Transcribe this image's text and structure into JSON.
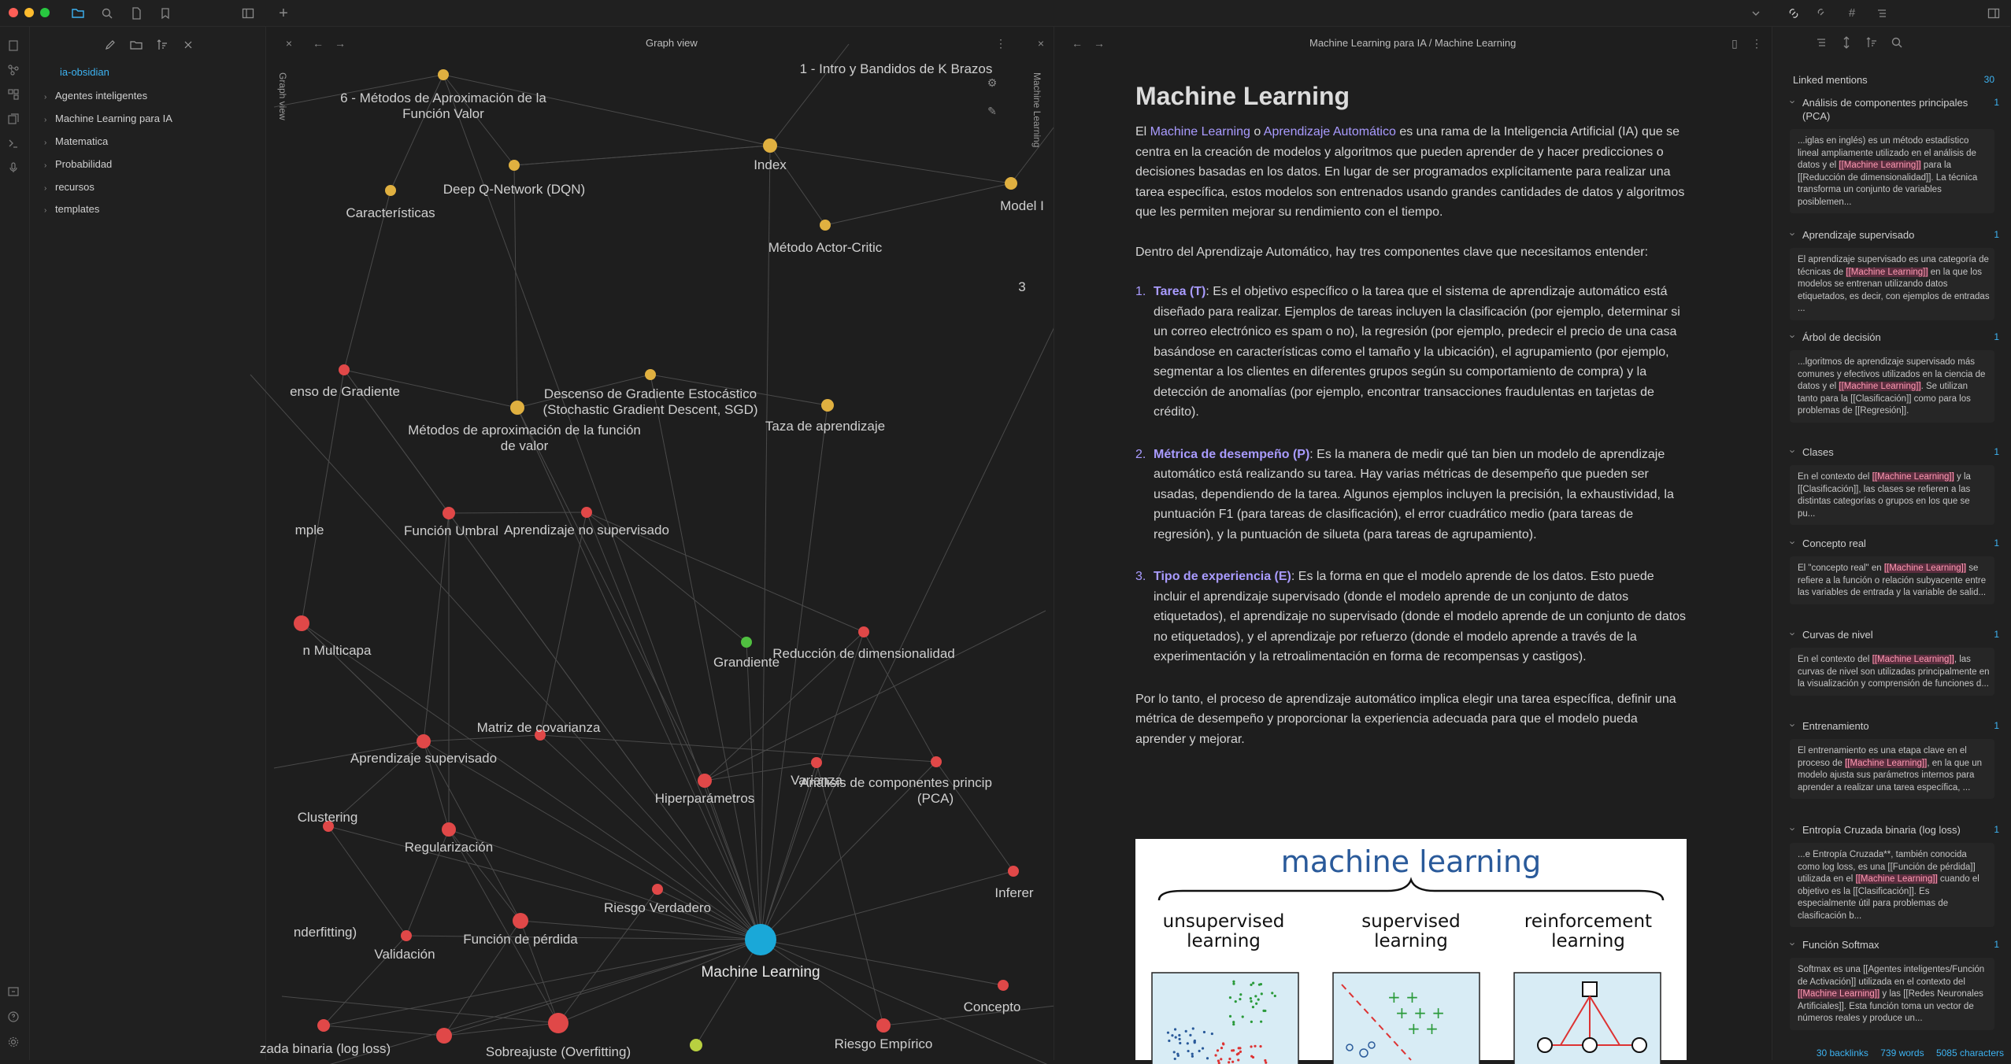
{
  "explorer": {
    "vault_name": "ia-obsidian",
    "folders": [
      "Agentes inteligentes",
      "Machine Learning para IA",
      "Matematica",
      "Probabilidad",
      "recursos",
      "templates"
    ]
  },
  "graph": {
    "tab_title": "Graph view",
    "side_tab_label": "Graph view",
    "labels": [
      {
        "text": "1 - Intro y Bandidos de K Brazos"
      },
      {
        "text": "6 - Métodos de Aproximación de la"
      },
      {
        "text": "Función Valor"
      },
      {
        "text": "Index"
      },
      {
        "text": "Deep Q-Network (DQN)"
      },
      {
        "text": "Características"
      },
      {
        "text": "Model I"
      },
      {
        "text": "Método Actor-Critic"
      },
      {
        "text": "3"
      },
      {
        "text": "enso de Gradiente"
      },
      {
        "text": "Descenso de Gradiente Estocástico"
      },
      {
        "text": "(Stochastic Gradient Descent, SGD)"
      },
      {
        "text": "Métodos de aproximación de la función"
      },
      {
        "text": "de valor"
      },
      {
        "text": "Taza de aprendizaje"
      },
      {
        "text": "mple"
      },
      {
        "text": "Función Umbral"
      },
      {
        "text": "Aprendizaje no supervisado"
      },
      {
        "text": "n Multicapa"
      },
      {
        "text": "Grandiente"
      },
      {
        "text": "Reducción de dimensionalidad"
      },
      {
        "text": "Matriz de covarianza"
      },
      {
        "text": "Aprendizaje supervisado"
      },
      {
        "text": "Clustering"
      },
      {
        "text": "Hiperparámetros"
      },
      {
        "text": "Varianza"
      },
      {
        "text": "Análisis de componentes princip"
      },
      {
        "text": "(PCA)"
      },
      {
        "text": "Regularización"
      },
      {
        "text": "Inferer"
      },
      {
        "text": "Riesgo Verdadero"
      },
      {
        "text": "nderfitting)"
      },
      {
        "text": "Validación"
      },
      {
        "text": "Función de pérdida"
      },
      {
        "text": "Machine Learning"
      },
      {
        "text": "Concepto"
      },
      {
        "text": "zada binaria (log loss)"
      },
      {
        "text": "Sobreajuste (Overfitting)"
      },
      {
        "text": "Riesgo Empírico"
      }
    ]
  },
  "note": {
    "breadcrumb": "Machine Learning para IA / Machine Learning",
    "side_tab_label": "Machine Learning",
    "title": "Machine Learning",
    "intro_pre": "El ",
    "intro_link1": "Machine Learning",
    "intro_mid": " o ",
    "intro_link2": "Aprendizaje Automático",
    "intro_post": " es una rama de la Inteligencia Artificial (IA) que se centra en la creación de modelos y algoritmos que pueden aprender de y hacer predicciones o decisiones basadas en los datos. En lugar de ser programados explícitamente para realizar una tarea específica, estos modelos son entrenados usando grandes cantidades de datos y algoritmos que les permiten mejorar su rendimiento con el tiempo.",
    "p2": "Dentro del Aprendizaje Automático, hay tres componentes clave que necesitamos entender:",
    "items": [
      {
        "num": "1.",
        "term": "Tarea (T)",
        "text": ": Es el objetivo específico o la tarea que el sistema de aprendizaje automático está diseñado para realizar. Ejemplos de tareas incluyen la clasificación (por ejemplo, determinar si un correo electrónico es spam o no), la regresión (por ejemplo, predecir el precio de una casa basándose en características como el tamaño y la ubicación), el agrupamiento (por ejemplo, segmentar a los clientes en diferentes grupos según su comportamiento de compra) y la detección de anomalías (por ejemplo, encontrar transacciones fraudulentas en tarjetas de crédito)."
      },
      {
        "num": "2.",
        "term": "Métrica de desempeño (P)",
        "text": ": Es la manera de medir qué tan bien un modelo de aprendizaje automático está realizando su tarea. Hay varias métricas de desempeño que pueden ser usadas, dependiendo de la tarea. Algunos ejemplos incluyen la precisión, la exhaustividad, la puntuación F1 (para tareas de clasificación), el error cuadrático medio (para tareas de regresión), y la puntuación de silueta (para tareas de agrupamiento)."
      },
      {
        "num": "3.",
        "term": "Tipo de experiencia (E)",
        "text": ": Es la forma en que el modelo aprende de los datos. Esto puede incluir el aprendizaje supervisado (donde el modelo aprende de un conjunto de datos etiquetados), el aprendizaje no supervisado (donde el modelo aprende de un conjunto de datos no etiquetados), y el aprendizaje por refuerzo (donde el modelo aprende a través de la experimentación y la retroalimentación en forma de recompensas y castigos)."
      }
    ],
    "conclusion": "Por lo tanto, el proceso de aprendizaje automático implica elegir una tarea específica, definir una métrica de desempeño y proporcionar la experiencia adecuada para que el modelo pueda aprender y mejorar.",
    "image": {
      "title": "machine learning",
      "col1a": "unsupervised",
      "col1b": "learning",
      "col2a": "supervised",
      "col2b": "learning",
      "col3a": "reinforcement",
      "col3b": "learning"
    }
  },
  "backlinks": {
    "header": "Linked mentions",
    "count": "30",
    "mentions": [
      {
        "title": "Análisis de componentes principales (PCA)",
        "count": "1",
        "pre": "...iglas en inglés) es un método estadístico lineal ampliamente utilizado en el análisis de datos y el ",
        "hl": "[[Machine Learning]]",
        "post": " para la [[Reducción de dimensionalidad]]. La técnica transforma un conjunto de variables posiblemen..."
      },
      {
        "title": "Aprendizaje supervisado",
        "count": "1",
        "pre": "El aprendizaje supervisado es una categoría de técnicas de ",
        "hl": "[[Machine Learning]]",
        "post": " en la que los modelos se entrenan utilizando datos etiquetados, es decir, con ejemplos de entradas ..."
      },
      {
        "title": "Árbol de decisión",
        "count": "1",
        "pre": "...lgoritmos de aprendizaje supervisado más comunes y efectivos utilizados en la ciencia de datos y el ",
        "hl": "[[Machine Learning]]",
        "post": ". Se utilizan tanto para la [[Clasificación]] como para los problemas de [[Regresión]]."
      },
      {
        "title": "Clases",
        "count": "1",
        "pre": "En el contexto del ",
        "hl": "[[Machine Learning]]",
        "post": " y la [[Clasificación]], las clases se refieren a las distintas categorías o grupos en los que se pu..."
      },
      {
        "title": "Concepto real",
        "count": "1",
        "pre": "El \"concepto real\" en ",
        "hl": "[[Machine Learning]]",
        "post": " se refiere a la función o relación subyacente entre las variables de entrada y la variable de salid..."
      },
      {
        "title": "Curvas de nivel",
        "count": "1",
        "pre": "En el contexto del ",
        "hl": "[[Machine Learning]]",
        "post": ", las curvas de nivel son utilizadas principalmente en la visualización y comprensión de funciones d..."
      },
      {
        "title": "Entrenamiento",
        "count": "1",
        "pre": "El entrenamiento es una etapa clave en el proceso de ",
        "hl": "[[Machine Learning]]",
        "post": ", en la que un modelo ajusta sus parámetros internos para aprender a realizar una tarea específica, ..."
      },
      {
        "title": "Entropía Cruzada binaria (log loss)",
        "count": "1",
        "pre": "...e Entropía Cruzada**, también conocida como log loss, es una [[Función de pérdida]] utilizada en el ",
        "hl": "[[Machine Learning]]",
        "post": " cuando el objetivo es la [[Clasificación]]. Es especialmente útil para problemas de clasificación b..."
      },
      {
        "title": "Función Softmax",
        "count": "1",
        "pre": "Softmax es una [[Agentes inteligentes/Función de Activación]] utilizada en el contexto del ",
        "hl": "[[Machine Learning]]",
        "post": " y las [[Redes Neuronales Artificiales]]. Esta función toma un vector de números reales y produce un..."
      }
    ],
    "status": {
      "backlinks": "30 backlinks",
      "words": "739 words",
      "chars": "5085 characters"
    }
  }
}
